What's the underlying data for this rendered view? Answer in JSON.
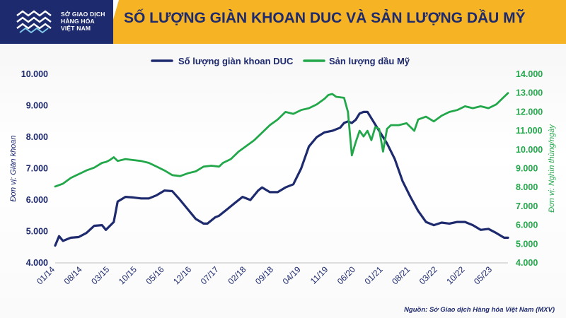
{
  "logo": {
    "line1": "SỞ GIAO DỊCH",
    "line2": "HÀNG HÓA",
    "line3": "VIỆT NAM"
  },
  "title": "SỐ LƯỢNG GIÀN KHOAN DUC VÀ SẢN LƯỢNG DẦU MỸ",
  "source": "Nguồn: Sở Giao dịch Hàng hóa Việt Nam (MXV)",
  "colors": {
    "navy": "#1e2a6e",
    "green": "#22a84a",
    "gold": "#f6b323"
  },
  "chart_data": {
    "type": "line",
    "x_ticks": [
      "01/14",
      "08/14",
      "03/15",
      "10/15",
      "05/16",
      "12/16",
      "07/17",
      "02/18",
      "09/18",
      "04/19",
      "11/19",
      "06/20",
      "01/21",
      "08/21",
      "03/22",
      "10/22",
      "05/23"
    ],
    "x_range": [
      "2014-01",
      "2023-09"
    ],
    "y_left": {
      "label": "Đơn vị: Giàn khoan",
      "range": [
        4000,
        10000
      ],
      "ticks": [
        "4.000",
        "5.000",
        "6.000",
        "7.000",
        "8.000",
        "9.000",
        "10.000"
      ]
    },
    "y_right": {
      "label": "Đơn vị: Nghìn thùng/ngày",
      "range": [
        4000,
        14000
      ],
      "ticks": [
        "4.000",
        "5.000",
        "6.000",
        "7.000",
        "8.000",
        "9.000",
        "10.000",
        "11.000",
        "12.000",
        "13.000",
        "14.000"
      ]
    },
    "legend_position": "top",
    "series": [
      {
        "name": "Số lượng giàn khoan DUC",
        "axis": "left",
        "color": "#1e2a6e",
        "points": [
          [
            "2014-01",
            4550
          ],
          [
            "2014-02",
            4850
          ],
          [
            "2014-03",
            4700
          ],
          [
            "2014-05",
            4800
          ],
          [
            "2014-07",
            4820
          ],
          [
            "2014-09",
            4950
          ],
          [
            "2014-11",
            5180
          ],
          [
            "2015-01",
            5200
          ],
          [
            "2015-02",
            5050
          ],
          [
            "2015-04",
            5300
          ],
          [
            "2015-05",
            5950
          ],
          [
            "2015-07",
            6100
          ],
          [
            "2015-09",
            6080
          ],
          [
            "2015-11",
            6050
          ],
          [
            "2016-01",
            6050
          ],
          [
            "2016-03",
            6150
          ],
          [
            "2016-05",
            6300
          ],
          [
            "2016-07",
            6280
          ],
          [
            "2016-09",
            6000
          ],
          [
            "2016-11",
            5700
          ],
          [
            "2017-01",
            5400
          ],
          [
            "2017-03",
            5250
          ],
          [
            "2017-04",
            5250
          ],
          [
            "2017-06",
            5450
          ],
          [
            "2017-07",
            5500
          ],
          [
            "2017-09",
            5700
          ],
          [
            "2017-11",
            5900
          ],
          [
            "2018-01",
            6100
          ],
          [
            "2018-03",
            6000
          ],
          [
            "2018-05",
            6300
          ],
          [
            "2018-06",
            6400
          ],
          [
            "2018-08",
            6250
          ],
          [
            "2018-10",
            6250
          ],
          [
            "2018-12",
            6400
          ],
          [
            "2019-02",
            6500
          ],
          [
            "2019-04",
            7000
          ],
          [
            "2019-06",
            7700
          ],
          [
            "2019-08",
            8000
          ],
          [
            "2019-10",
            8150
          ],
          [
            "2019-12",
            8200
          ],
          [
            "2020-02",
            8300
          ],
          [
            "2020-03",
            8450
          ],
          [
            "2020-04",
            8500
          ],
          [
            "2020-05",
            8450
          ],
          [
            "2020-06",
            8550
          ],
          [
            "2020-07",
            8750
          ],
          [
            "2020-08",
            8800
          ],
          [
            "2020-09",
            8800
          ],
          [
            "2020-10",
            8600
          ],
          [
            "2020-12",
            8200
          ],
          [
            "2021-02",
            7800
          ],
          [
            "2021-04",
            7300
          ],
          [
            "2021-06",
            6600
          ],
          [
            "2021-08",
            6100
          ],
          [
            "2021-10",
            5650
          ],
          [
            "2021-12",
            5300
          ],
          [
            "2022-02",
            5200
          ],
          [
            "2022-04",
            5280
          ],
          [
            "2022-06",
            5250
          ],
          [
            "2022-08",
            5300
          ],
          [
            "2022-10",
            5300
          ],
          [
            "2022-12",
            5200
          ],
          [
            "2023-02",
            5050
          ],
          [
            "2023-04",
            5080
          ],
          [
            "2023-06",
            4950
          ],
          [
            "2023-08",
            4800
          ],
          [
            "2023-09",
            4800
          ]
        ]
      },
      {
        "name": "Sản lượng dầu Mỹ",
        "axis": "right",
        "color": "#22a84a",
        "points": [
          [
            "2014-01",
            8050
          ],
          [
            "2014-03",
            8200
          ],
          [
            "2014-05",
            8500
          ],
          [
            "2014-07",
            8700
          ],
          [
            "2014-09",
            8900
          ],
          [
            "2014-11",
            9050
          ],
          [
            "2015-01",
            9300
          ],
          [
            "2015-02",
            9350
          ],
          [
            "2015-03",
            9450
          ],
          [
            "2015-04",
            9600
          ],
          [
            "2015-05",
            9400
          ],
          [
            "2015-07",
            9500
          ],
          [
            "2015-09",
            9450
          ],
          [
            "2015-11",
            9400
          ],
          [
            "2016-01",
            9300
          ],
          [
            "2016-03",
            9100
          ],
          [
            "2016-05",
            8900
          ],
          [
            "2016-07",
            8650
          ],
          [
            "2016-09",
            8600
          ],
          [
            "2016-11",
            8750
          ],
          [
            "2017-01",
            8850
          ],
          [
            "2017-03",
            9100
          ],
          [
            "2017-05",
            9150
          ],
          [
            "2017-07",
            9100
          ],
          [
            "2017-08",
            9300
          ],
          [
            "2017-10",
            9500
          ],
          [
            "2017-12",
            9900
          ],
          [
            "2018-02",
            10200
          ],
          [
            "2018-04",
            10500
          ],
          [
            "2018-06",
            10900
          ],
          [
            "2018-08",
            11300
          ],
          [
            "2018-10",
            11600
          ],
          [
            "2018-12",
            12000
          ],
          [
            "2019-02",
            11900
          ],
          [
            "2019-04",
            12100
          ],
          [
            "2019-06",
            12200
          ],
          [
            "2019-08",
            12400
          ],
          [
            "2019-10",
            12700
          ],
          [
            "2019-11",
            12900
          ],
          [
            "2019-12",
            12950
          ],
          [
            "2020-01",
            12800
          ],
          [
            "2020-03",
            12750
          ],
          [
            "2020-04",
            12000
          ],
          [
            "2020-05",
            9700
          ],
          [
            "2020-06",
            10400
          ],
          [
            "2020-07",
            11000
          ],
          [
            "2020-08",
            10700
          ],
          [
            "2020-09",
            11000
          ],
          [
            "2020-10",
            10500
          ],
          [
            "2020-11",
            11200
          ],
          [
            "2020-12",
            11100
          ],
          [
            "2021-01",
            9900
          ],
          [
            "2021-02",
            11100
          ],
          [
            "2021-03",
            11300
          ],
          [
            "2021-05",
            11300
          ],
          [
            "2021-07",
            11400
          ],
          [
            "2021-09",
            11000
          ],
          [
            "2021-10",
            11600
          ],
          [
            "2021-12",
            11750
          ],
          [
            "2022-02",
            11500
          ],
          [
            "2022-04",
            11800
          ],
          [
            "2022-06",
            12000
          ],
          [
            "2022-08",
            12100
          ],
          [
            "2022-10",
            12300
          ],
          [
            "2022-12",
            12200
          ],
          [
            "2023-02",
            12300
          ],
          [
            "2023-04",
            12200
          ],
          [
            "2023-06",
            12400
          ],
          [
            "2023-08",
            12800
          ],
          [
            "2023-09",
            13000
          ]
        ]
      }
    ]
  }
}
